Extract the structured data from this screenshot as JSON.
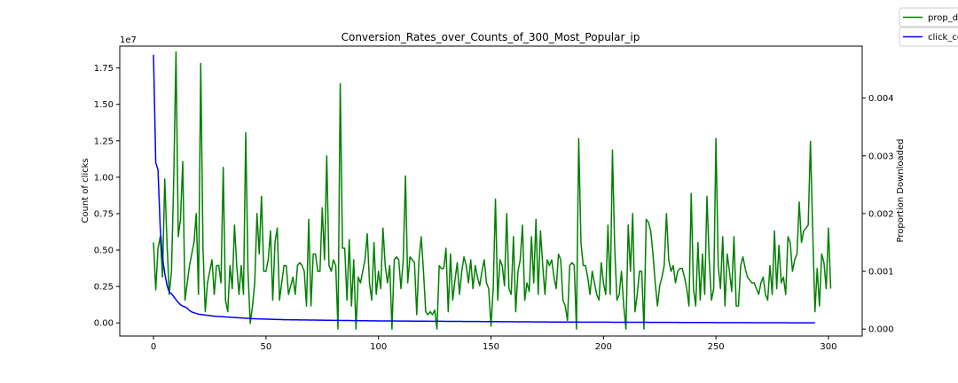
{
  "chart_data": {
    "type": "line",
    "title": "Conversion_Rates_over_Counts_of_300_Most_Popular_ip",
    "xlabel": "",
    "ylabel": "Count of clicks",
    "y2label": "Proportion Downloaded",
    "y_offset_text": "1e7",
    "xlim": [
      -15,
      315
    ],
    "ylim": [
      -0.09,
      1.9
    ],
    "y2lim": [
      -0.00012,
      0.0049
    ],
    "x_ticks": [
      0,
      50,
      100,
      150,
      200,
      250,
      300
    ],
    "x_tick_labels": [
      "0",
      "50",
      "100",
      "150",
      "200",
      "250",
      "300"
    ],
    "y_ticks": [
      0,
      0.25,
      0.5,
      0.75,
      1.0,
      1.25,
      1.5,
      1.75
    ],
    "y_tick_labels": [
      "0.00",
      "0.25",
      "0.50",
      "0.75",
      "1.00",
      "1.25",
      "1.50",
      "1.75"
    ],
    "y2_ticks": [
      0,
      0.001,
      0.002,
      0.003,
      0.004
    ],
    "y2_tick_labels": [
      "0.000",
      "0.001",
      "0.002",
      "0.003",
      "0.004"
    ],
    "legend_placement": "top-right outside",
    "grid": false,
    "series": [
      {
        "name": "prop_d",
        "axis": "right",
        "color": "#008000",
        "x_start": 0,
        "values": [
          0.0015,
          0.00068,
          0.0014,
          0.0016,
          0.0009,
          0.0026,
          0.0015,
          0.0006,
          0.001,
          0.0026,
          0.0048,
          0.0016,
          0.0019,
          0.0029,
          0.0005,
          0.0008,
          0.0011,
          0.0013,
          0.0015,
          0.002,
          0.0006,
          0.0046,
          0.0014,
          0.0003,
          0.0008,
          0.001,
          0.0012,
          0.0006,
          0.0011,
          0.0011,
          0.0008,
          0.0028,
          0.0005,
          0.0003,
          0.0011,
          0.0007,
          0.0018,
          0.0011,
          0.0006,
          0.0011,
          0.0006,
          0.0034,
          0.001,
          0.0001,
          0.0004,
          0.0008,
          0.002,
          0.0013,
          0.0023,
          0.001,
          0.001,
          0.0012,
          0.0017,
          0.0005,
          0.0015,
          0.00175,
          0.0005,
          0.0008,
          0.0011,
          0.0011,
          0.0006,
          0.00075,
          0.0009,
          0.0006,
          0.0011,
          0.00115,
          0.0011,
          0.001,
          0.0004,
          0.0019,
          0.0004,
          0.0013,
          0.0013,
          0.001,
          0.001,
          0.0021,
          0.0012,
          0.003,
          0.0011,
          0.001,
          0.0012,
          0.0011,
          0.0,
          0.00425,
          0.0014,
          0.0014,
          0.0005,
          0.00155,
          0.0004,
          0.0012,
          0.0,
          0.0009,
          0.0008,
          0.001,
          0.0012,
          0.00165,
          0.0008,
          0.0005,
          0.0015,
          0.0006,
          0.001,
          0.0007,
          0.00175,
          0.0011,
          0.0008,
          0.0011,
          0.0,
          0.0012,
          0.00125,
          0.0012,
          0.0007,
          0.0012,
          0.00265,
          0.0008,
          0.00125,
          0.0012,
          0.00115,
          0.00025,
          0.0012,
          0.0016,
          0.001,
          0.0003,
          0.00025,
          0.0003,
          0.00025,
          0.00033,
          0.0,
          0.0011,
          0.00105,
          0.00105,
          0.0014,
          0.0003,
          0.0013,
          0.0005,
          0.00085,
          0.00115,
          0.0006,
          0.001,
          0.00125,
          0.0011,
          0.0008,
          0.0012,
          0.0007,
          0.0011,
          0.0009,
          0.00075,
          0.001,
          0.0012,
          0.0008,
          0.0007,
          5e-05,
          0.0007,
          0.00225,
          0.0005,
          0.0012,
          0.0011,
          0.00075,
          0.002,
          0.0007,
          0.0006,
          0.0016,
          0.0003,
          0.001,
          0.0012,
          0.0018,
          0.0005,
          0.0008,
          0.00065,
          0.0016,
          0.0008,
          0.0019,
          0.0006,
          0.0017,
          0.0011,
          0.0006,
          0.0012,
          0.0011,
          0.0012,
          0.0009,
          0.0007,
          0.0013,
          0.0012,
          0.0005,
          0.0004,
          0.00015,
          0.0011,
          0.00115,
          0.0011,
          0.0,
          0.0033,
          0.0015,
          0.0011,
          0.0011,
          0.0009,
          0.0006,
          0.001,
          0.0008,
          0.0006,
          0.0005,
          0.00115,
          0.0008,
          0.0006,
          0.0018,
          0.0006,
          0.0031,
          0.0014,
          0.0005,
          0.0006,
          0.001,
          0.0004,
          0.0,
          0.0018,
          0.001,
          0.002,
          0.0003,
          0.0006,
          0.001,
          0.001,
          0.0,
          0.0019,
          0.00185,
          0.0017,
          0.0013,
          0.0008,
          0.0004,
          0.00075,
          0.0009,
          0.0011,
          0.002,
          0.0012,
          0.001,
          0.0011,
          0.0008,
          0.001,
          0.00105,
          0.00105,
          0.0009,
          0.0007,
          0.0004,
          0.00235,
          0.0007,
          0.0004,
          0.0015,
          0.0005,
          0.0013,
          0.0006,
          0.0023,
          0.0012,
          0.0005,
          0.0007,
          0.0033,
          0.0011,
          0.0007,
          0.0016,
          0.0004,
          0.0013,
          0.001,
          0.00065,
          0.0016,
          0.0004,
          0.0004,
          0.0011,
          0.00125,
          0.00105,
          0.0009,
          0.00085,
          0.0008,
          0.0008,
          0.0007,
          0.0006,
          0.0008,
          0.0009,
          0.0006,
          0.0005,
          0.0011,
          0.0006,
          0.0017,
          0.0007,
          0.00145,
          0.0008,
          0.0009,
          0.0006,
          0.0016,
          0.0015,
          0.001,
          0.0012,
          0.0013,
          0.0022,
          0.0015,
          0.0017,
          0.00175,
          0.0018,
          0.00325,
          0.0017,
          0.0003,
          0.00105,
          0.0004,
          0.0013,
          0.00115,
          0.0007,
          0.00175,
          0.0007
        ]
      },
      {
        "name": "click_co",
        "axis": "left",
        "color": "#0000ff",
        "x_start": 0,
        "values": [
          1.84,
          1.1,
          1.05,
          0.65,
          0.45,
          0.34,
          0.26,
          0.21,
          0.2,
          0.18,
          0.16,
          0.14,
          0.125,
          0.115,
          0.11,
          0.1,
          0.085,
          0.075,
          0.07,
          0.065,
          0.06,
          0.058,
          0.056,
          0.054,
          0.052,
          0.05,
          0.048,
          0.046,
          0.045,
          0.044,
          0.043,
          0.042,
          0.041,
          0.04,
          0.039,
          0.038,
          0.037,
          0.036,
          0.035,
          0.034,
          0.033,
          0.032,
          0.031,
          0.03,
          0.029,
          0.0285,
          0.028,
          0.0275,
          0.027,
          0.0265,
          0.026,
          0.0255,
          0.025,
          0.0245,
          0.024,
          0.0235,
          0.023,
          0.0225,
          0.022,
          0.0218,
          0.0216,
          0.0214,
          0.0212,
          0.021,
          0.0208,
          0.0206,
          0.0204,
          0.0202,
          0.02,
          0.0198,
          0.0196,
          0.0194,
          0.0192,
          0.019,
          0.0188,
          0.0186,
          0.0184,
          0.0182,
          0.018,
          0.0178,
          0.0176,
          0.0174,
          0.0172,
          0.017,
          0.0168,
          0.0166,
          0.0164,
          0.0162,
          0.016,
          0.0158,
          0.0156,
          0.0154,
          0.0152,
          0.015,
          0.0148,
          0.0146,
          0.0144,
          0.0142,
          0.014,
          0.0139,
          0.0138,
          0.0137,
          0.0136,
          0.0135,
          0.0134,
          0.0133,
          0.0132,
          0.0131,
          0.013,
          0.0129,
          0.0128,
          0.0127,
          0.0126,
          0.0125,
          0.0124,
          0.0123,
          0.0122,
          0.0121,
          0.012,
          0.0119,
          0.0118,
          0.0117,
          0.0116,
          0.0115,
          0.0114,
          0.0113,
          0.0112,
          0.0111,
          0.011,
          0.0109,
          0.0108,
          0.0107,
          0.0106,
          0.0105,
          0.0104,
          0.0103,
          0.0102,
          0.0101,
          0.01,
          0.0099,
          0.0098,
          0.0097,
          0.0096,
          0.0095,
          0.0094,
          0.0093,
          0.0092,
          0.0091,
          0.009,
          0.0089,
          0.0088,
          0.0087,
          0.0086,
          0.0085,
          0.0084,
          0.0083,
          0.0082,
          0.0081,
          0.008,
          0.0079,
          0.0078,
          0.0077,
          0.0076,
          0.0075,
          0.0074,
          0.0073,
          0.0072,
          0.0071,
          0.007,
          0.0069,
          0.0068,
          0.0067,
          0.0066,
          0.0065,
          0.0064,
          0.0063,
          0.0062,
          0.0061,
          0.006,
          0.006,
          0.0059,
          0.0059,
          0.0058,
          0.0058,
          0.0057,
          0.0057,
          0.0056,
          0.0056,
          0.0055,
          0.0055,
          0.0054,
          0.0054,
          0.0053,
          0.0053,
          0.0052,
          0.0052,
          0.0051,
          0.0051,
          0.005,
          0.005,
          0.0049,
          0.0049,
          0.0048,
          0.0048,
          0.0047,
          0.0047,
          0.0046,
          0.0046,
          0.0045,
          0.0045,
          0.0044,
          0.0044,
          0.0043,
          0.0043,
          0.0042,
          0.0042,
          0.0041,
          0.0041,
          0.004,
          0.004,
          0.0039,
          0.0039,
          0.0038,
          0.0038,
          0.0037,
          0.0037,
          0.0036,
          0.0036,
          0.0035,
          0.0035,
          0.0034,
          0.0034,
          0.0033,
          0.0033,
          0.0032,
          0.0032,
          0.0031,
          0.0031,
          0.003,
          0.003,
          0.0029,
          0.0029,
          0.0028,
          0.0028,
          0.0027,
          0.0027,
          0.0026,
          0.0026,
          0.0025,
          0.0025,
          0.0024,
          0.0024,
          0.0023,
          0.0023,
          0.0022,
          0.0022,
          0.0021,
          0.0021,
          0.002,
          0.002,
          0.0019,
          0.0019,
          0.0018,
          0.0018,
          0.0017,
          0.0017,
          0.0016,
          0.0016,
          0.0015,
          0.0015,
          0.0014,
          0.0014,
          0.0013,
          0.0013,
          0.0012,
          0.0012,
          0.0011,
          0.0011,
          0.001,
          0.001,
          0.0009,
          0.0009,
          0.0008,
          0.0008,
          0.0007,
          0.0007,
          0.0006,
          0.0006,
          0.0005,
          0.0005,
          0.0004,
          0.0004,
          0.0003,
          0.0003,
          0.0002
        ]
      }
    ]
  }
}
